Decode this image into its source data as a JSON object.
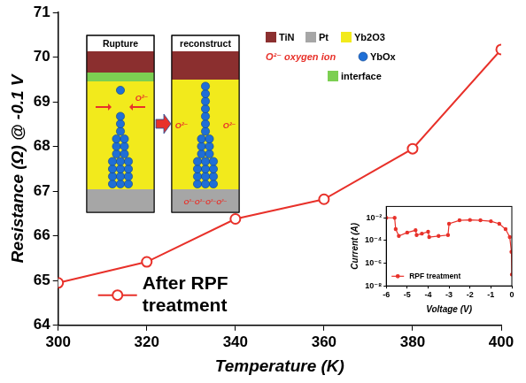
{
  "chart_data": [
    {
      "type": "line",
      "x_label": "Temperature (K)",
      "y_label": "Resistance (Ω) @ -0.1 V",
      "x": [
        300,
        320,
        340,
        360,
        380,
        400
      ],
      "series": [
        {
          "name": "After RPF treatment",
          "color": "#e8312a",
          "values": [
            64.95,
            65.42,
            66.38,
            66.82,
            67.95,
            70.17
          ],
          "marker": "circle-open",
          "line_style": "solid"
        }
      ],
      "xlim": [
        300,
        400
      ],
      "xticks": [
        300,
        320,
        340,
        360,
        380,
        400
      ],
      "ylim": [
        64,
        71
      ],
      "yticks": [
        64,
        65,
        66,
        67,
        68,
        69,
        70,
        71
      ],
      "grid": false,
      "legend": "lower left"
    },
    {
      "type": "line",
      "x_label": "Voltage (V)",
      "y_label": "Current (A)",
      "x": [
        -6,
        -5.6,
        -5.55,
        -5.4,
        -5.0,
        -4.6,
        -4.55,
        -4.3,
        -4.0,
        -3.95,
        -3.5,
        -3.05,
        -3.0,
        -2.5,
        -2.0,
        -1.5,
        -1.0,
        -0.6,
        -0.3,
        -0.1,
        -0.02,
        0
      ],
      "series": [
        {
          "name": "RPF treatment",
          "color": "#e8312a",
          "values": [
            0.01,
            0.01,
            0.001,
            0.00025,
            0.0005,
            0.0008,
            0.0003,
            0.0004,
            0.0006,
            0.0002,
            0.00025,
            0.0003,
            0.003,
            0.006,
            0.0065,
            0.006,
            0.005,
            0.003,
            0.001,
            0.0002,
            1e-05,
            1e-07
          ],
          "marker": "circle",
          "line_style": "solid"
        }
      ],
      "xlim": [
        -6,
        0
      ],
      "xticks": [
        -6,
        -5,
        -4,
        -3,
        -2,
        -1,
        0
      ],
      "ylim": [
        1e-08,
        0.1
      ],
      "yticks": [
        {
          "value": 1e-08,
          "label": "10⁻⁸"
        },
        {
          "value": 1e-06,
          "label": "10⁻⁶"
        },
        {
          "value": 0.0001,
          "label": "10⁻⁴"
        },
        {
          "value": 0.01,
          "label": "10⁻²"
        }
      ],
      "log": "y",
      "grid": false,
      "legend": "lower left"
    }
  ],
  "diagram": {
    "panels": [
      {
        "title": "Rupture",
        "layers": [
          "TiN",
          "interface",
          "Yb2O3",
          "Pt"
        ],
        "ion_labels": [
          "O²⁻"
        ]
      },
      {
        "title": "reconstruct",
        "layers": [
          "TiN",
          "Yb2O3",
          "Pt"
        ],
        "ion_labels": [
          "O²⁻",
          "O²⁻",
          "O²⁻O²⁻O²⁻O²⁻"
        ]
      }
    ],
    "legend": [
      {
        "label": "TiN",
        "color": "#8b2f2f",
        "marker": "square"
      },
      {
        "label": "Pt",
        "color": "#a6a6a6",
        "marker": "square"
      },
      {
        "label": "Yb2O3",
        "color": "#f2ea1c",
        "marker": "square"
      },
      {
        "label": "O²⁻ oxygen ion",
        "color": "#e8312a",
        "marker": "text"
      },
      {
        "label": "YbOx",
        "color": "#1f6fd6",
        "marker": "circle"
      },
      {
        "label": "interface",
        "color": "#7ccf52",
        "marker": "square"
      }
    ]
  }
}
